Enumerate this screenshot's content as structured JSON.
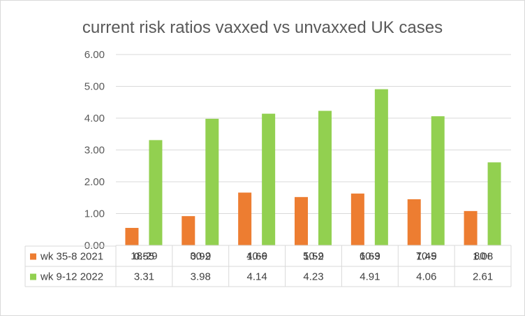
{
  "chart_data": {
    "type": "bar",
    "title": "current risk ratios vaxxed vs unvaxxed UK cases",
    "categories": [
      "18-29",
      "30-9",
      "40-9",
      "50-9",
      "60-9",
      "70-9",
      "80+"
    ],
    "series": [
      {
        "name": "wk 35-8 2021",
        "color": "#ed7d31",
        "values": [
          0.55,
          0.92,
          1.66,
          1.52,
          1.63,
          1.45,
          1.08
        ],
        "labels": [
          "0.55",
          "0.92",
          "1.66",
          "1.52",
          "1.63",
          "1.45",
          "1.08"
        ]
      },
      {
        "name": "wk 9-12 2022",
        "color": "#92d050",
        "values": [
          3.31,
          3.98,
          4.14,
          4.23,
          4.91,
          4.06,
          2.61
        ],
        "labels": [
          "3.31",
          "3.98",
          "4.14",
          "4.23",
          "4.91",
          "4.06",
          "2.61"
        ]
      }
    ],
    "ylim": [
      0,
      6
    ],
    "yticks": [
      "0.00",
      "1.00",
      "2.00",
      "3.00",
      "4.00",
      "5.00",
      "6.00"
    ],
    "grid": true,
    "legend": "data-table"
  }
}
